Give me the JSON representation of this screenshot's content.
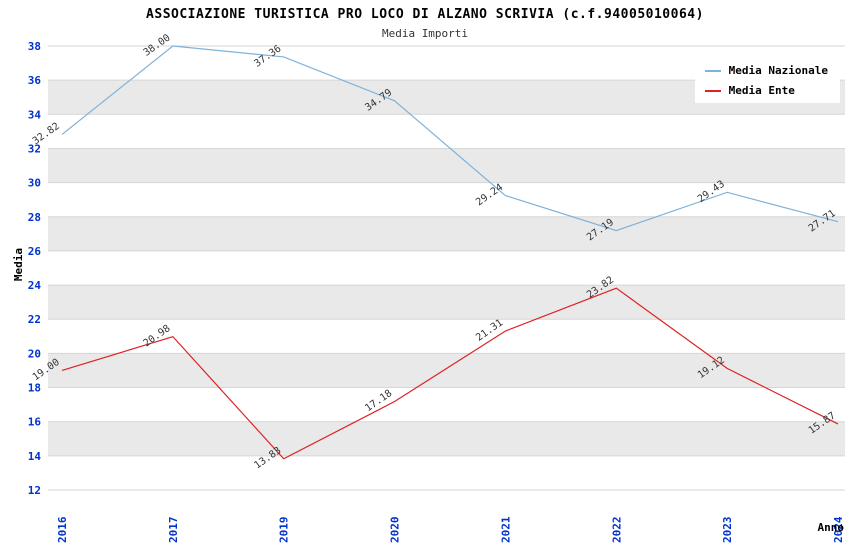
{
  "chart_data": {
    "type": "line",
    "title": "ASSOCIAZIONE TURISTICA PRO LOCO DI ALZANO SCRIVIA (c.f.94005010064)",
    "subtitle": "Media Importi",
    "xlabel": "Anno",
    "ylabel": "Media",
    "ylim": [
      12,
      38
    ],
    "ytick_step": 2,
    "grid": true,
    "legend_position": "top-right",
    "categories": [
      "2016",
      "2017",
      "2019",
      "2020",
      "2021",
      "2022",
      "2023",
      "2024"
    ],
    "series": [
      {
        "name": "Media Nazionale",
        "color": "#7fb2d8",
        "values": [
          32.82,
          38.0,
          37.36,
          34.79,
          29.24,
          27.19,
          29.43,
          27.71
        ]
      },
      {
        "name": "Media Ente",
        "color": "#dd2222",
        "values": [
          19.0,
          20.98,
          13.83,
          17.18,
          21.31,
          23.82,
          19.12,
          15.87
        ]
      }
    ],
    "band_color": "#e9e9e9",
    "gridline_color": "#d6d6d6",
    "axis_text_color": "#0033cc",
    "point_label_color": "#333333"
  }
}
